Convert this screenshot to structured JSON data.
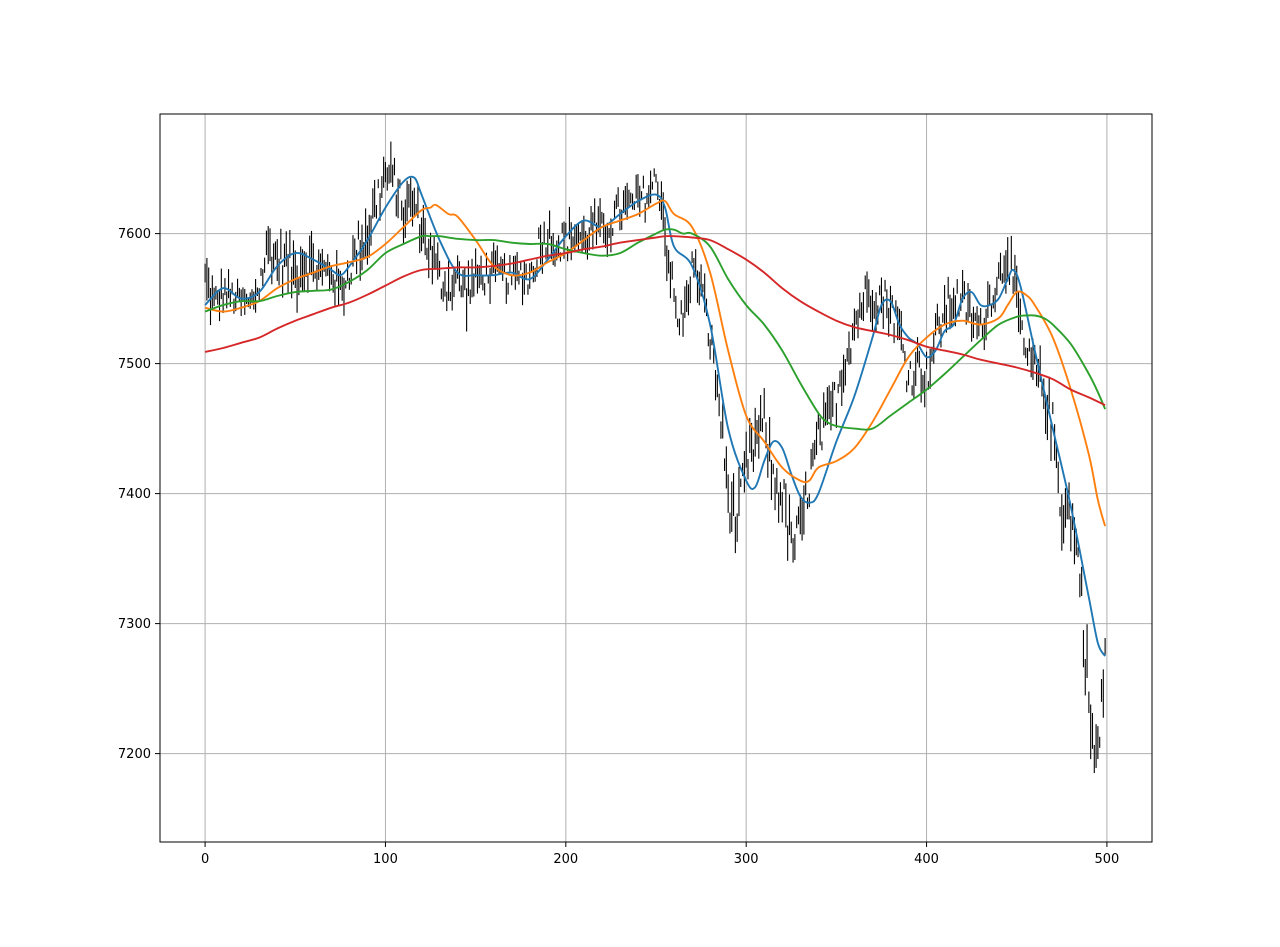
{
  "chart_data": {
    "type": "line",
    "title": "",
    "xlabel": "",
    "ylabel": "",
    "xlim": [
      -25,
      525
    ],
    "ylim": [
      7132,
      7692
    ],
    "x_ticks": [
      0,
      100,
      200,
      300,
      400,
      500
    ],
    "y_ticks": [
      7200,
      7300,
      7400,
      7500,
      7600
    ],
    "grid": true,
    "price_bars": {
      "description": "black high-low price bars, one per index 0-499",
      "color": "#000000",
      "x_start": 0,
      "x_end": 499,
      "anchors": [
        [
          0,
          7565,
          25
        ],
        [
          5,
          7545,
          22
        ],
        [
          10,
          7555,
          18
        ],
        [
          20,
          7548,
          15
        ],
        [
          25,
          7545,
          15
        ],
        [
          30,
          7560,
          22
        ],
        [
          35,
          7590,
          25
        ],
        [
          40,
          7580,
          25
        ],
        [
          45,
          7578,
          28
        ],
        [
          50,
          7570,
          30
        ],
        [
          55,
          7580,
          28
        ],
        [
          60,
          7575,
          25
        ],
        [
          65,
          7570,
          22
        ],
        [
          70,
          7572,
          22
        ],
        [
          75,
          7555,
          25
        ],
        [
          80,
          7572,
          22
        ],
        [
          85,
          7590,
          25
        ],
        [
          90,
          7600,
          30
        ],
        [
          95,
          7625,
          30
        ],
        [
          100,
          7645,
          25
        ],
        [
          105,
          7640,
          25
        ],
        [
          110,
          7615,
          22
        ],
        [
          115,
          7625,
          25
        ],
        [
          120,
          7605,
          22
        ],
        [
          125,
          7585,
          25
        ],
        [
          130,
          7565,
          25
        ],
        [
          135,
          7560,
          25
        ],
        [
          140,
          7565,
          25
        ],
        [
          145,
          7555,
          25
        ],
        [
          150,
          7565,
          22
        ],
        [
          155,
          7568,
          20
        ],
        [
          160,
          7570,
          20
        ],
        [
          165,
          7568,
          20
        ],
        [
          170,
          7565,
          18
        ],
        [
          175,
          7570,
          20
        ],
        [
          180,
          7565,
          22
        ],
        [
          185,
          7590,
          25
        ],
        [
          190,
          7600,
          22
        ],
        [
          195,
          7592,
          22
        ],
        [
          200,
          7595,
          22
        ],
        [
          205,
          7600,
          22
        ],
        [
          210,
          7595,
          20
        ],
        [
          215,
          7605,
          25
        ],
        [
          220,
          7600,
          22
        ],
        [
          225,
          7608,
          22
        ],
        [
          230,
          7618,
          22
        ],
        [
          235,
          7620,
          22
        ],
        [
          240,
          7625,
          22
        ],
        [
          245,
          7630,
          22
        ],
        [
          250,
          7640,
          22
        ],
        [
          253,
          7630,
          22
        ],
        [
          255,
          7600,
          25
        ],
        [
          258,
          7570,
          25
        ],
        [
          262,
          7530,
          20
        ],
        [
          266,
          7540,
          20
        ],
        [
          270,
          7575,
          20
        ],
        [
          275,
          7560,
          20
        ],
        [
          280,
          7520,
          25
        ],
        [
          285,
          7470,
          25
        ],
        [
          290,
          7400,
          30
        ],
        [
          295,
          7375,
          30
        ],
        [
          300,
          7420,
          30
        ],
        [
          305,
          7440,
          30
        ],
        [
          310,
          7455,
          25
        ],
        [
          315,
          7410,
          30
        ],
        [
          320,
          7400,
          30
        ],
        [
          325,
          7360,
          30
        ],
        [
          330,
          7370,
          30
        ],
        [
          335,
          7410,
          30
        ],
        [
          340,
          7440,
          30
        ],
        [
          345,
          7455,
          25
        ],
        [
          350,
          7475,
          25
        ],
        [
          355,
          7505,
          25
        ],
        [
          360,
          7530,
          25
        ],
        [
          365,
          7550,
          25
        ],
        [
          370,
          7555,
          25
        ],
        [
          375,
          7550,
          25
        ],
        [
          380,
          7545,
          25
        ],
        [
          385,
          7525,
          25
        ],
        [
          390,
          7490,
          25
        ],
        [
          395,
          7500,
          25
        ],
        [
          400,
          7490,
          25
        ],
        [
          405,
          7520,
          25
        ],
        [
          410,
          7540,
          25
        ],
        [
          415,
          7550,
          25
        ],
        [
          420,
          7548,
          22
        ],
        [
          425,
          7535,
          22
        ],
        [
          430,
          7525,
          22
        ],
        [
          435,
          7550,
          22
        ],
        [
          440,
          7565,
          22
        ],
        [
          445,
          7590,
          30
        ],
        [
          450,
          7545,
          25
        ],
        [
          455,
          7505,
          25
        ],
        [
          460,
          7495,
          25
        ],
        [
          465,
          7480,
          25
        ],
        [
          470,
          7450,
          30
        ],
        [
          475,
          7390,
          35
        ],
        [
          480,
          7385,
          30
        ],
        [
          485,
          7340,
          30
        ],
        [
          490,
          7240,
          40
        ],
        [
          493,
          7195,
          35
        ],
        [
          496,
          7210,
          30
        ],
        [
          499,
          7280,
          30
        ]
      ]
    },
    "series": [
      {
        "color": "#1f77b4",
        "x": [
          0,
          10,
          20,
          30,
          40,
          50,
          60,
          70,
          75,
          80,
          90,
          100,
          110,
          116,
          120,
          130,
          140,
          150,
          160,
          170,
          180,
          190,
          200,
          210,
          220,
          230,
          240,
          250,
          255,
          260,
          270,
          280,
          290,
          300,
          305,
          310,
          315,
          320,
          325,
          330,
          335,
          340,
          350,
          360,
          370,
          375,
          380,
          385,
          390,
          395,
          400,
          405,
          410,
          415,
          420,
          425,
          430,
          435,
          440,
          445,
          448,
          452,
          460,
          470,
          480,
          490,
          495,
          499
        ],
        "y": [
          7545,
          7558,
          7550,
          7555,
          7575,
          7585,
          7580,
          7572,
          7568,
          7575,
          7595,
          7620,
          7640,
          7643,
          7630,
          7595,
          7570,
          7568,
          7568,
          7570,
          7565,
          7580,
          7598,
          7610,
          7605,
          7615,
          7625,
          7630,
          7620,
          7590,
          7575,
          7530,
          7450,
          7410,
          7405,
          7425,
          7440,
          7435,
          7415,
          7398,
          7393,
          7400,
          7440,
          7475,
          7520,
          7545,
          7548,
          7530,
          7520,
          7515,
          7505,
          7510,
          7525,
          7530,
          7550,
          7555,
          7545,
          7545,
          7550,
          7565,
          7572,
          7560,
          7510,
          7450,
          7390,
          7320,
          7285,
          7275
        ]
      },
      {
        "color": "#ff7f0e",
        "x": [
          0,
          10,
          20,
          30,
          40,
          50,
          60,
          70,
          80,
          90,
          100,
          110,
          120,
          125,
          128,
          135,
          140,
          150,
          160,
          170,
          180,
          190,
          200,
          210,
          220,
          230,
          240,
          250,
          255,
          260,
          270,
          280,
          290,
          300,
          310,
          320,
          330,
          335,
          340,
          350,
          360,
          370,
          380,
          390,
          400,
          410,
          420,
          430,
          440,
          445,
          450,
          455,
          460,
          470,
          480,
          490,
          495,
          499
        ],
        "y": [
          7543,
          7540,
          7543,
          7548,
          7558,
          7565,
          7570,
          7575,
          7578,
          7582,
          7592,
          7605,
          7618,
          7620,
          7622,
          7615,
          7613,
          7595,
          7575,
          7568,
          7570,
          7578,
          7585,
          7595,
          7605,
          7610,
          7615,
          7623,
          7625,
          7615,
          7605,
          7570,
          7510,
          7460,
          7440,
          7420,
          7410,
          7410,
          7420,
          7425,
          7435,
          7455,
          7480,
          7505,
          7520,
          7530,
          7533,
          7530,
          7535,
          7545,
          7555,
          7553,
          7545,
          7520,
          7480,
          7430,
          7395,
          7375
        ]
      },
      {
        "color": "#2ca02c",
        "x": [
          0,
          10,
          20,
          30,
          40,
          50,
          60,
          70,
          80,
          90,
          100,
          110,
          120,
          125,
          130,
          140,
          150,
          160,
          170,
          180,
          190,
          200,
          210,
          220,
          230,
          240,
          250,
          255,
          260,
          265,
          270,
          280,
          290,
          300,
          310,
          320,
          330,
          340,
          345,
          350,
          360,
          370,
          380,
          390,
          400,
          410,
          420,
          430,
          440,
          450,
          455,
          460,
          465,
          470,
          480,
          490,
          495,
          499
        ],
        "y": [
          7540,
          7545,
          7548,
          7548,
          7552,
          7555,
          7556,
          7557,
          7563,
          7572,
          7585,
          7592,
          7598,
          7598,
          7598,
          7596,
          7595,
          7595,
          7593,
          7592,
          7592,
          7588,
          7585,
          7583,
          7585,
          7593,
          7600,
          7603,
          7603,
          7600,
          7600,
          7590,
          7565,
          7545,
          7530,
          7510,
          7485,
          7462,
          7455,
          7452,
          7450,
          7450,
          7460,
          7470,
          7480,
          7492,
          7505,
          7518,
          7530,
          7536,
          7537,
          7537,
          7535,
          7530,
          7515,
          7492,
          7478,
          7465
        ]
      },
      {
        "color": "#d62728",
        "x": [
          0,
          10,
          20,
          30,
          40,
          50,
          60,
          70,
          80,
          90,
          100,
          110,
          120,
          130,
          140,
          150,
          160,
          170,
          180,
          190,
          200,
          210,
          220,
          230,
          240,
          250,
          255,
          260,
          270,
          280,
          290,
          300,
          310,
          320,
          330,
          340,
          350,
          360,
          370,
          380,
          390,
          400,
          410,
          420,
          430,
          440,
          450,
          460,
          470,
          480,
          490,
          499
        ],
        "y": [
          7509,
          7512,
          7516,
          7520,
          7527,
          7533,
          7538,
          7543,
          7547,
          7553,
          7560,
          7567,
          7572,
          7573,
          7574,
          7574,
          7575,
          7577,
          7580,
          7583,
          7585,
          7588,
          7590,
          7593,
          7595,
          7597,
          7598,
          7598,
          7597,
          7595,
          7588,
          7580,
          7570,
          7558,
          7548,
          7540,
          7533,
          7528,
          7525,
          7522,
          7518,
          7513,
          7510,
          7507,
          7503,
          7500,
          7497,
          7493,
          7488,
          7480,
          7474,
          7468
        ]
      }
    ]
  }
}
